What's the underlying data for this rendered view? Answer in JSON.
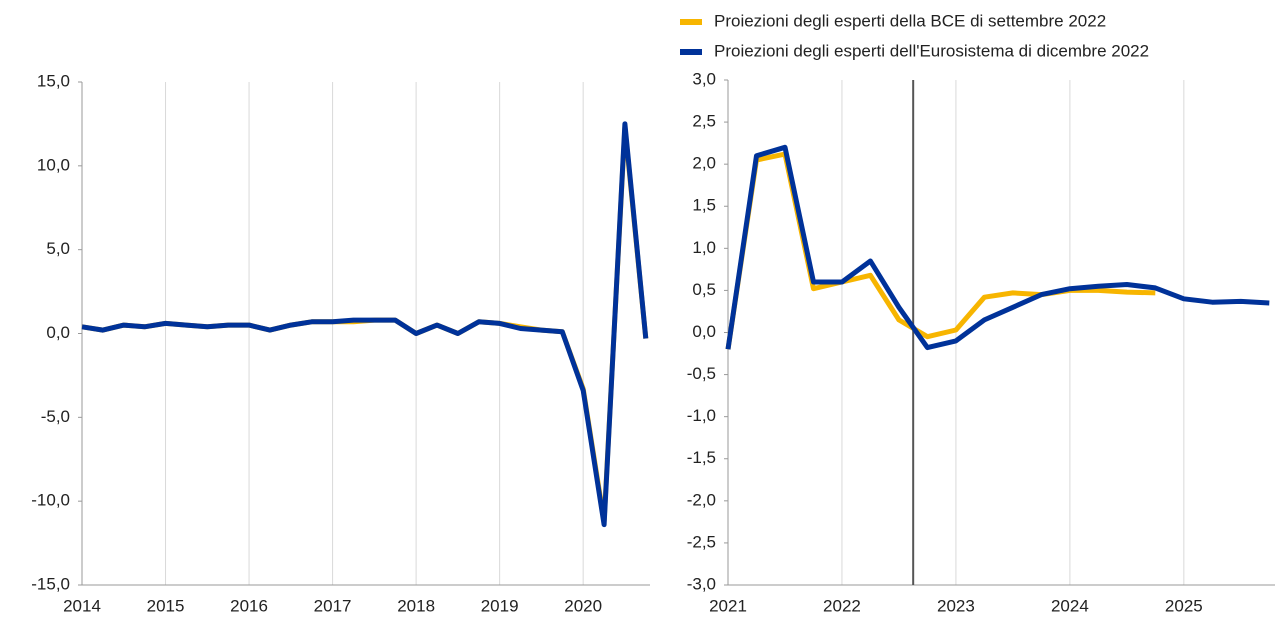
{
  "chart_data": [
    {
      "type": "line",
      "x": [
        2014,
        2014.25,
        2014.5,
        2014.75,
        2015,
        2015.25,
        2015.5,
        2015.75,
        2016,
        2016.25,
        2016.5,
        2016.75,
        2017,
        2017.25,
        2017.5,
        2017.75,
        2018,
        2018.25,
        2018.5,
        2018.75,
        2019,
        2019.25,
        2019.5,
        2019.75,
        2020,
        2020.25,
        2020.5,
        2020.75
      ],
      "series": [
        {
          "color": "#f7b500",
          "values": [
            0.4,
            0.2,
            0.5,
            0.4,
            0.6,
            0.5,
            0.4,
            0.5,
            0.5,
            0.2,
            0.5,
            0.7,
            0.7,
            0.7,
            0.8,
            0.8,
            0.0,
            0.5,
            0.0,
            0.7,
            0.6,
            0.4,
            0.2,
            0.1,
            -3.3,
            -11.2,
            12.3,
            -0.3
          ]
        },
        {
          "color": "#003299",
          "values": [
            0.4,
            0.2,
            0.5,
            0.4,
            0.6,
            0.5,
            0.4,
            0.5,
            0.5,
            0.2,
            0.5,
            0.7,
            0.7,
            0.8,
            0.8,
            0.8,
            0.0,
            0.5,
            0.0,
            0.7,
            0.6,
            0.3,
            0.2,
            0.1,
            -3.4,
            -11.4,
            12.5,
            -0.3
          ]
        }
      ],
      "xlim": [
        2014,
        2020.8
      ],
      "xticks": [
        2014,
        2015,
        2016,
        2017,
        2018,
        2019,
        2020
      ],
      "ylim": [
        -15,
        15
      ],
      "yticks": [
        {
          "value": -15,
          "label": "-15,0"
        },
        {
          "value": -10,
          "label": "-10,0"
        },
        {
          "value": -5,
          "label": "-5,0"
        },
        {
          "value": 0,
          "label": "0,0"
        },
        {
          "value": 5,
          "label": "5,0"
        },
        {
          "value": 10,
          "label": "10,0"
        },
        {
          "value": 15,
          "label": "15,0"
        }
      ],
      "grid": "x"
    },
    {
      "type": "line",
      "x": [
        2021,
        2021.25,
        2021.5,
        2021.75,
        2022,
        2022.25,
        2022.5,
        2022.75,
        2023,
        2023.25,
        2023.5,
        2023.75,
        2024,
        2024.25,
        2024.5,
        2024.75,
        2025,
        2025.25,
        2025.5,
        2025.75
      ],
      "series": [
        {
          "name": "Proiezioni degli esperti della BCE di settembre 2022",
          "color": "#f7b500",
          "values": [
            -0.2,
            2.05,
            2.12,
            0.52,
            0.6,
            0.68,
            0.15,
            -0.05,
            0.03,
            0.42,
            0.47,
            0.45,
            0.5,
            0.5,
            0.48,
            0.47,
            null,
            null,
            null,
            null
          ]
        },
        {
          "name": "Proiezioni degli esperti dell'Eurosistema di dicembre 2022",
          "color": "#003299",
          "values": [
            -0.2,
            2.1,
            2.2,
            0.6,
            0.6,
            0.85,
            0.3,
            -0.18,
            -0.1,
            0.15,
            0.3,
            0.45,
            0.52,
            0.55,
            0.57,
            0.53,
            0.4,
            0.36,
            0.37,
            0.35
          ]
        }
      ],
      "xlim": [
        2021,
        2025.8
      ],
      "xticks": [
        2021,
        2022,
        2023,
        2024,
        2025
      ],
      "ylim": [
        -3,
        3
      ],
      "yticks": [
        {
          "value": -3,
          "label": "-3,0"
        },
        {
          "value": -2.5,
          "label": "-2,5"
        },
        {
          "value": -2,
          "label": "-2,0"
        },
        {
          "value": -1.5,
          "label": "-1,5"
        },
        {
          "value": -1,
          "label": "-1,0"
        },
        {
          "value": -0.5,
          "label": "-0,5"
        },
        {
          "value": 0,
          "label": "0,0"
        },
        {
          "value": 0.5,
          "label": "0,5"
        },
        {
          "value": 1,
          "label": "1,0"
        },
        {
          "value": 1.5,
          "label": "1,5"
        },
        {
          "value": 2,
          "label": "2,0"
        },
        {
          "value": 2.5,
          "label": "2,5"
        },
        {
          "value": 3,
          "label": "3,0"
        }
      ],
      "grid": "x",
      "vline": 2022.625,
      "legend": "top"
    }
  ]
}
